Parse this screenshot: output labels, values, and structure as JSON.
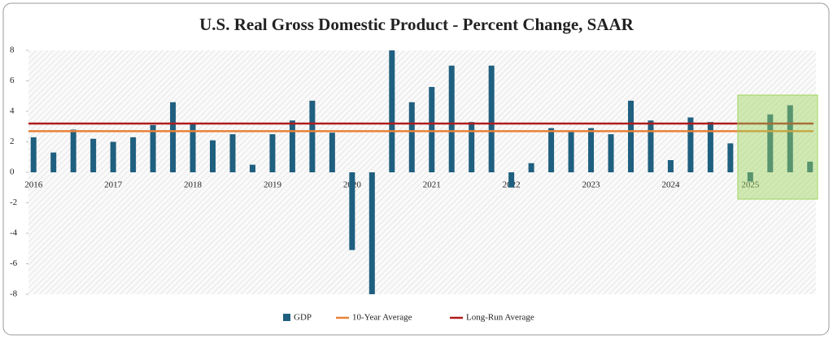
{
  "chart_data": {
    "type": "bar",
    "title": "U.S. Real Gross Domestic Product - Percent Change, SAAR",
    "categories": [
      "2016",
      null,
      null,
      null,
      "2017",
      null,
      null,
      null,
      "2018",
      null,
      null,
      null,
      "2019",
      null,
      null,
      null,
      "2020",
      null,
      null,
      null,
      "2021",
      null,
      null,
      null,
      "2022",
      null,
      null,
      null,
      "2023",
      null,
      null,
      null,
      "2024",
      null,
      null,
      null,
      "2025",
      null,
      null,
      null
    ],
    "series": [
      {
        "name": "GDP",
        "color": "#1f5f7f",
        "values": [
          2.3,
          1.3,
          2.8,
          2.2,
          2.0,
          2.3,
          3.1,
          4.6,
          3.2,
          2.1,
          2.5,
          0.5,
          2.5,
          3.4,
          4.7,
          2.6,
          -5.1,
          -8,
          8,
          4.6,
          5.6,
          7.0,
          3.3,
          7.0,
          -1.0,
          0.6,
          2.9,
          2.7,
          2.9,
          2.5,
          4.7,
          3.4,
          0.8,
          3.6,
          3.3,
          1.9,
          -0.6,
          3.8,
          4.4,
          0.7
        ]
      }
    ],
    "reference_lines": [
      {
        "name": "10-Year Average",
        "color": "#e8823a",
        "value": 2.7
      },
      {
        "name": "Long-Run Average",
        "color": "#b01c1c",
        "value": 3.2
      }
    ],
    "ylim": [
      -8,
      8
    ],
    "yticks": [
      -8,
      -6,
      -4,
      -2,
      0,
      2,
      4,
      6,
      8
    ],
    "grid": false
  }
}
